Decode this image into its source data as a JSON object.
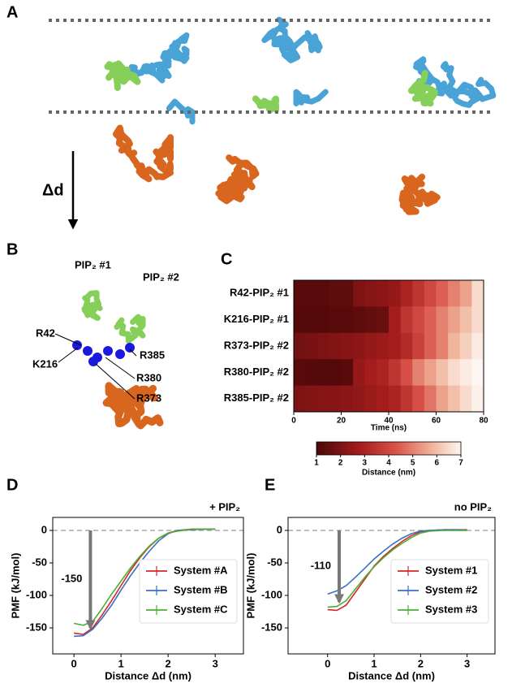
{
  "panel_labels": [
    "A",
    "B",
    "C",
    "D",
    "E"
  ],
  "panel_a": {
    "arrow_label": "Δd"
  },
  "panel_b": {
    "lipids": [
      "PIP₂ #1",
      "PIP₂ #2"
    ],
    "residues": [
      "R42",
      "K216",
      "R385",
      "R380",
      "R373"
    ]
  },
  "chart_data": [
    {
      "type": "heatmap",
      "categories": [
        "R42-PIP₂ #1",
        "K216-PIP₂ #1",
        "R373-PIP₂ #2",
        "R380-PIP₂ #2",
        "R385-PIP₂ #2"
      ],
      "bins": [
        0,
        5,
        10,
        15,
        20,
        25,
        30,
        35,
        40,
        45,
        50,
        55,
        60,
        65,
        70,
        75,
        80
      ],
      "values": [
        [
          1.3,
          1.3,
          1.3,
          1.4,
          1.4,
          2.0,
          2.2,
          2.3,
          2.5,
          3.0,
          3.5,
          4.0,
          4.5,
          5.0,
          5.5,
          6.5
        ],
        [
          1.2,
          1.2,
          1.2,
          1.3,
          1.3,
          1.4,
          1.5,
          1.6,
          2.8,
          3.5,
          4.0,
          4.5,
          5.0,
          5.5,
          6.0,
          6.5
        ],
        [
          1.8,
          1.9,
          2.0,
          2.1,
          2.2,
          2.3,
          2.5,
          2.6,
          2.8,
          3.2,
          3.8,
          4.5,
          5.0,
          5.8,
          6.3,
          6.8
        ],
        [
          1.3,
          1.2,
          1.2,
          1.2,
          1.3,
          2.5,
          2.8,
          3.0,
          3.5,
          4.2,
          5.0,
          5.5,
          6.0,
          6.5,
          6.8,
          7.0
        ],
        [
          2.0,
          2.1,
          2.2,
          2.2,
          2.3,
          2.4,
          2.6,
          2.8,
          3.0,
          3.5,
          4.2,
          4.8,
          5.5,
          6.0,
          6.5,
          6.9
        ]
      ],
      "xlabel": "Time (ns)",
      "xlim": [
        0,
        80
      ],
      "xticks": [
        0,
        20,
        40,
        60,
        80
      ],
      "clim": [
        1,
        7
      ],
      "cticks": [
        1,
        2,
        3,
        4,
        5,
        6,
        7
      ],
      "clabel": "Distance (nm)"
    },
    {
      "type": "line",
      "title": "+ PIP₂",
      "xlabel": "Distance Δd (nm)",
      "ylabel": "PMF (kJ/mol)",
      "x": [
        0,
        0.2,
        0.4,
        0.6,
        0.8,
        1.0,
        1.2,
        1.4,
        1.6,
        1.8,
        2.0,
        2.2,
        2.5,
        2.8,
        3.0
      ],
      "series": [
        {
          "name": "System #A",
          "color": "#d62728",
          "values": [
            -158,
            -160,
            -150,
            -130,
            -108,
            -85,
            -62,
            -42,
            -25,
            -12,
            -4,
            0,
            2,
            2,
            2
          ]
        },
        {
          "name": "System #B",
          "color": "#3a6fc4",
          "values": [
            -163,
            -162,
            -152,
            -135,
            -115,
            -92,
            -70,
            -50,
            -32,
            -16,
            -5,
            0,
            1,
            2,
            2
          ]
        },
        {
          "name": "System #C",
          "color": "#4caf35",
          "values": [
            -143,
            -146,
            -140,
            -120,
            -98,
            -78,
            -58,
            -40,
            -24,
            -12,
            -4,
            -1,
            2,
            2,
            2
          ]
        }
      ],
      "xlim": [
        -0.45,
        3.6
      ],
      "xticks": [
        0,
        1,
        2,
        3
      ],
      "ylim": [
        -190,
        20
      ],
      "yticks": [
        0,
        -50,
        -100,
        -150
      ],
      "hline": 0,
      "annotation": {
        "label": "-150",
        "value": -150,
        "x": 0.35
      },
      "legend": "lower right"
    },
    {
      "type": "line",
      "title": "no PIP₂",
      "xlabel": "Distance Δd (nm)",
      "ylabel": "PMF (kJ/mol)",
      "x": [
        0,
        0.2,
        0.4,
        0.6,
        0.8,
        1.0,
        1.2,
        1.4,
        1.6,
        1.8,
        2.0,
        2.2,
        2.5,
        2.8,
        3.0
      ],
      "series": [
        {
          "name": "System #1",
          "color": "#d62728",
          "values": [
            -122,
            -123,
            -115,
            -95,
            -75,
            -55,
            -40,
            -28,
            -17,
            -8,
            -2,
            0,
            1,
            1,
            1
          ]
        },
        {
          "name": "System #2",
          "color": "#3a6fc4",
          "values": [
            -98,
            -93,
            -85,
            -72,
            -58,
            -44,
            -32,
            -21,
            -12,
            -5,
            -1,
            0,
            1,
            1,
            0
          ]
        },
        {
          "name": "System #3",
          "color": "#4caf35",
          "values": [
            -118,
            -117,
            -108,
            -90,
            -72,
            -56,
            -42,
            -30,
            -20,
            -11,
            -4,
            -1,
            0,
            0,
            0
          ]
        }
      ],
      "xlim": [
        -0.85,
        3.6
      ],
      "xticks": [
        0,
        1,
        2,
        3
      ],
      "ylim": [
        -190,
        20
      ],
      "yticks": [
        0,
        -50,
        -100,
        -150
      ],
      "hline": 0,
      "annotation": {
        "label": "-110",
        "value": -110,
        "x": 0.25
      },
      "legend": "lower right"
    }
  ]
}
